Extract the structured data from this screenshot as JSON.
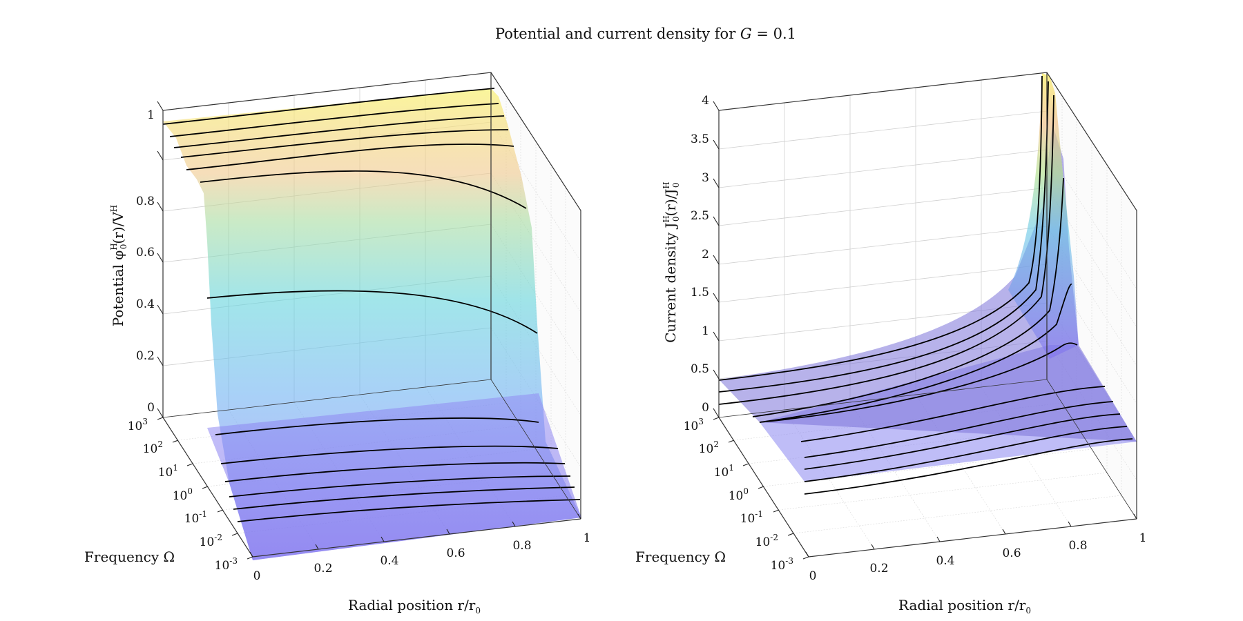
{
  "figure": {
    "title_prefix": "Potential and current density for ",
    "title_var": "G",
    "title_suffix": " = 0.1"
  },
  "chart_data": [
    {
      "type": "surface",
      "panel": "left",
      "title": "",
      "xlabel": "Radial position r/r",
      "xlabel_sub": "0",
      "ylabel": "Frequency Ω",
      "zlabel_prefix": "Potential φ",
      "zlabel_sup": "H",
      "zlabel_sub": "0",
      "zlabel_mid": "(r)/V",
      "zlabel_sup2": "H",
      "x_ticks": [
        "0",
        "0.2",
        "0.4",
        "0.6",
        "0.8",
        "1"
      ],
      "y_ticks_exp": [
        "-3",
        "-2",
        "-1",
        "0",
        "1",
        "2",
        "3"
      ],
      "y_ticks_base": "10",
      "z_ticks": [
        "0",
        "0.2",
        "0.4",
        "0.6",
        "0.8",
        "1"
      ],
      "xlim": [
        0,
        1
      ],
      "ylim_log10": [
        -3,
        3
      ],
      "zlim": [
        0,
        1
      ],
      "grid": true,
      "colormap": "parula (transparent)",
      "contour_lines": [
        {
          "log10_omega": -2.5,
          "z": [
            0.01,
            0.01,
            0.01,
            0.012,
            0.015,
            0.02
          ]
        },
        {
          "log10_omega": -2.0,
          "z": [
            0.02,
            0.02,
            0.022,
            0.025,
            0.03,
            0.035
          ]
        },
        {
          "log10_omega": -1.5,
          "z": [
            0.04,
            0.04,
            0.042,
            0.045,
            0.05,
            0.06
          ]
        },
        {
          "log10_omega": -1.0,
          "z": [
            0.06,
            0.062,
            0.065,
            0.07,
            0.08,
            0.09
          ]
        },
        {
          "log10_omega": -0.5,
          "z": [
            0.1,
            0.105,
            0.11,
            0.12,
            0.13,
            0.14
          ]
        },
        {
          "log10_omega": 0.0,
          "z": [
            0.38,
            0.4,
            0.4,
            0.39,
            0.36,
            0.3
          ]
        },
        {
          "log10_omega": 0.5,
          "z": [
            0.75,
            0.77,
            0.78,
            0.78,
            0.76,
            0.66
          ]
        },
        {
          "log10_omega": 1.0,
          "z": [
            0.83,
            0.85,
            0.86,
            0.87,
            0.86,
            0.8
          ]
        },
        {
          "log10_omega": 1.5,
          "z": [
            0.88,
            0.89,
            0.9,
            0.91,
            0.91,
            0.88
          ]
        },
        {
          "log10_omega": 2.0,
          "z": [
            0.92,
            0.93,
            0.94,
            0.95,
            0.95,
            0.93
          ]
        },
        {
          "log10_omega": 2.5,
          "z": [
            0.95,
            0.96,
            0.97,
            0.98,
            0.98,
            0.97
          ]
        }
      ]
    },
    {
      "type": "surface",
      "panel": "right",
      "title": "",
      "xlabel": "Radial position r/r",
      "xlabel_sub": "0",
      "ylabel": "Frequency Ω",
      "zlabel_prefix": "Current density J",
      "zlabel_sup": "H",
      "zlabel_sub": "0",
      "zlabel_mid": "(r)/J",
      "zlabel_sup2": "H",
      "zlabel_sub2": "0",
      "x_ticks": [
        "0",
        "0.2",
        "0.4",
        "0.6",
        "0.8",
        "1"
      ],
      "y_ticks_exp": [
        "-3",
        "-2",
        "-1",
        "0",
        "1",
        "2",
        "3"
      ],
      "y_ticks_base": "10",
      "z_ticks": [
        "0",
        "0.5",
        "1",
        "1.5",
        "2",
        "2.5",
        "3",
        "3.5",
        "4"
      ],
      "xlim": [
        0,
        1
      ],
      "ylim_log10": [
        -3,
        3
      ],
      "zlim": [
        0,
        4
      ],
      "grid": true,
      "colormap": "parula (transparent)",
      "contour_lines": [
        {
          "log10_omega": -2.5,
          "z": [
            1.0,
            1.0,
            1.0,
            1.0,
            1.0,
            1.0
          ]
        },
        {
          "log10_omega": -2.0,
          "z": [
            1.0,
            1.0,
            1.0,
            1.0,
            1.0,
            1.0
          ]
        },
        {
          "log10_omega": -1.5,
          "z": [
            1.0,
            1.0,
            1.0,
            1.0,
            1.01,
            1.01
          ]
        },
        {
          "log10_omega": -1.0,
          "z": [
            0.99,
            0.99,
            0.99,
            1.0,
            1.02,
            1.03
          ]
        },
        {
          "log10_omega": -0.5,
          "z": [
            0.98,
            0.98,
            0.99,
            1.0,
            1.03,
            1.05
          ]
        },
        {
          "log10_omega": 0.0,
          "z": [
            0.95,
            0.95,
            0.96,
            0.98,
            1.05,
            1.08
          ]
        },
        {
          "log10_omega": 0.5,
          "z": [
            0.55,
            0.57,
            0.62,
            0.75,
            1.1,
            1.45
          ]
        },
        {
          "log10_omega": 1.0,
          "z": [
            0.25,
            0.28,
            0.35,
            0.55,
            1.1,
            2.05
          ]
        },
        {
          "log10_omega": 1.5,
          "z": [
            0.12,
            0.14,
            0.2,
            0.42,
            1.1,
            3.05
          ]
        },
        {
          "log10_omega": 2.0,
          "z": [
            0.06,
            0.07,
            0.12,
            0.33,
            1.1,
            3.9
          ]
        },
        {
          "log10_omega": 2.5,
          "z": [
            0.03,
            0.04,
            0.08,
            0.28,
            1.1,
            4.0
          ]
        }
      ]
    }
  ]
}
